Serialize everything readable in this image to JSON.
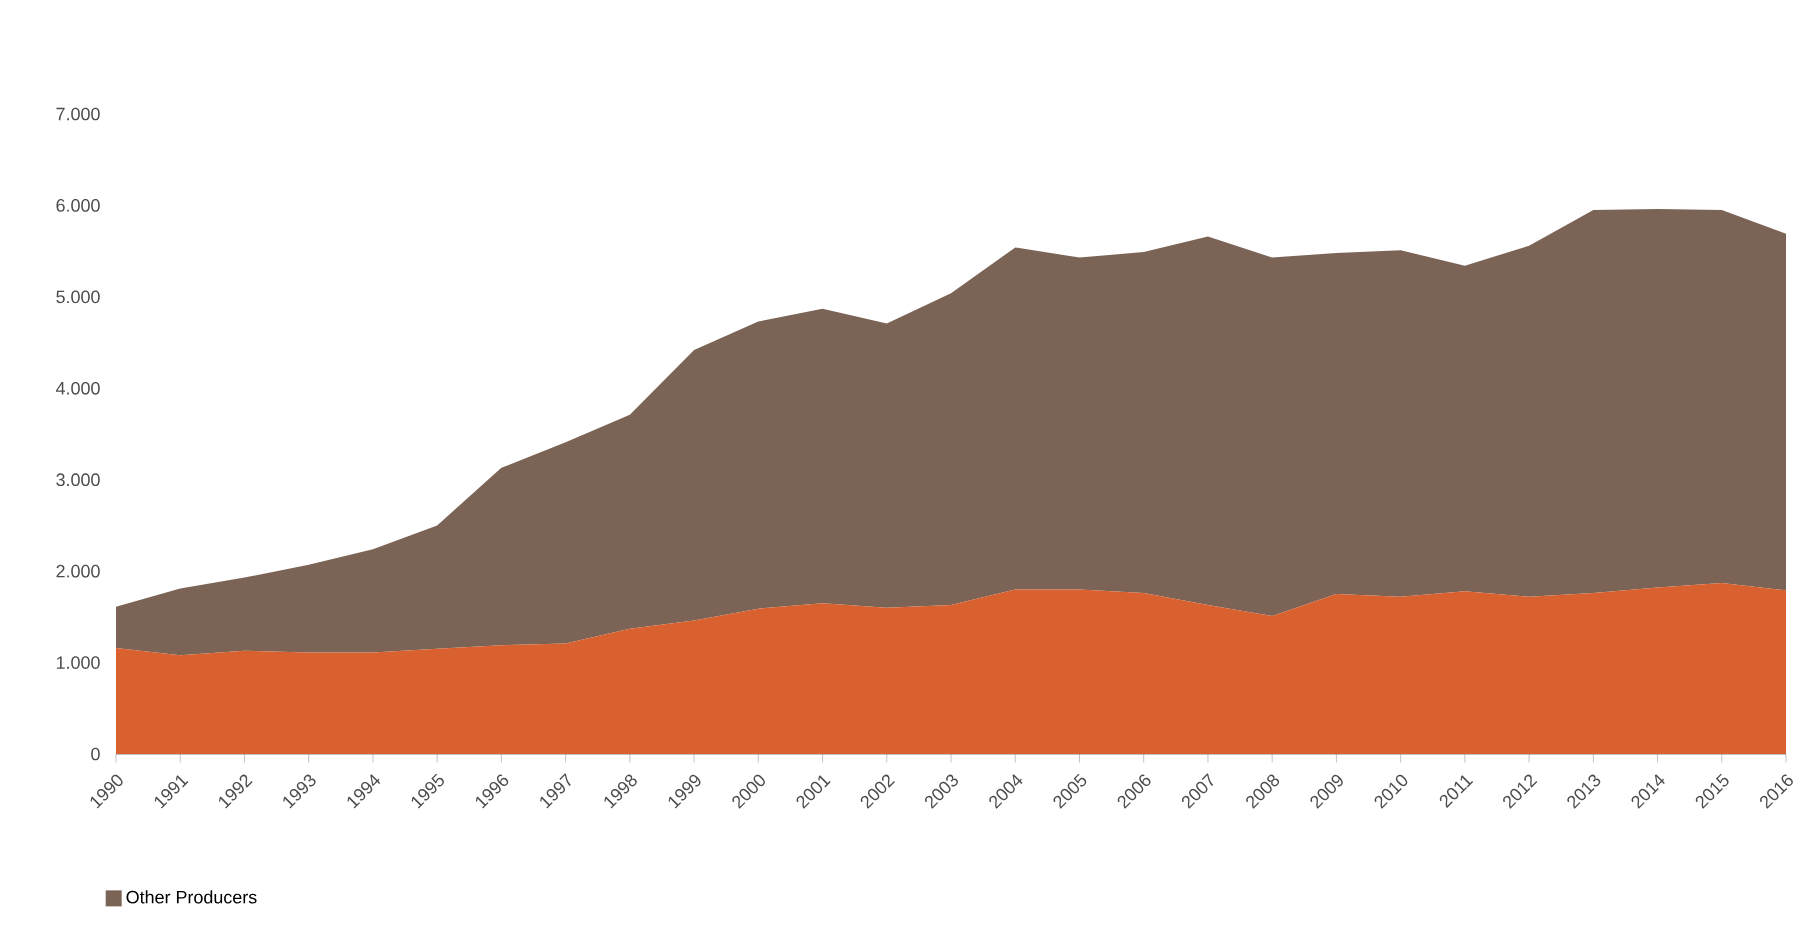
{
  "chart_data": {
    "type": "area",
    "stacked": true,
    "legend": "bottom left",
    "categories": [
      "1990",
      "1991",
      "1992",
      "1993",
      "1994",
      "1995",
      "1996",
      "1997",
      "1998",
      "1999",
      "2000",
      "2001",
      "2002",
      "2003",
      "2004",
      "2005",
      "2006",
      "2007",
      "2008",
      "2009",
      "2010",
      "2011",
      "2012",
      "2013",
      "2014",
      "2015",
      "2016"
    ],
    "ylim": [
      0,
      7000
    ],
    "yticks": [
      0,
      {
        "value": 1000,
        "label": "1.000"
      },
      {
        "value": 2000,
        "label": "2.000"
      },
      {
        "value": 3000,
        "label": "3.000"
      },
      {
        "value": 4000,
        "label": "4.000"
      },
      {
        "value": 5000,
        "label": "5.000"
      },
      {
        "value": 6000,
        "label": "6.000"
      },
      {
        "value": 7000,
        "label": "7.000"
      }
    ],
    "series": [
      {
        "color": "#d9602f",
        "values": [
          1160,
          1080,
          1130,
          1110,
          1110,
          1150,
          1190,
          1210,
          1370,
          1460,
          1590,
          1650,
          1600,
          1630,
          1800,
          1800,
          1760,
          1630,
          1510,
          1750,
          1720,
          1780,
          1720,
          1760,
          1820,
          1870,
          1790
        ]
      },
      {
        "name": "Other Producers",
        "color": "#7b6356",
        "values": [
          450,
          730,
          800,
          960,
          1130,
          1350,
          1940,
          2200,
          2340,
          2960,
          3140,
          3220,
          3110,
          3410,
          3740,
          3630,
          3730,
          4030,
          3920,
          3730,
          3790,
          3560,
          3840,
          4190,
          4140,
          4080,
          3900
        ]
      }
    ]
  }
}
